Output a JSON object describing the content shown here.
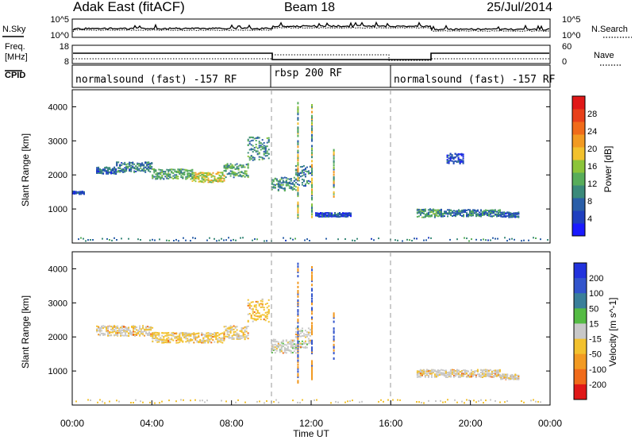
{
  "header": {
    "station": "Adak East (fitACF)",
    "beam": "Beam 18",
    "date": "25/Jul/2014"
  },
  "noise_panel": {
    "left_label": "N.Sky",
    "left_ticks": [
      "10^5",
      "10^0"
    ],
    "right_ticks": [
      "10^5",
      "10^0"
    ],
    "right_label": "N.Search"
  },
  "freq_panel": {
    "left_label": "Freq.",
    "left_unit": "[MHz]",
    "left_ticks": [
      "18",
      "8"
    ],
    "right_ticks": [
      "60",
      "0"
    ],
    "right_label": "Nave"
  },
  "cpid": {
    "label": "CPID",
    "segments": [
      {
        "text": "normalsound (fast) -157 RF",
        "start": 0,
        "end": 10
      },
      {
        "text": "rbsp 200 RF",
        "start": 10,
        "end": 16
      },
      {
        "text": "normalsound (fast) -157 RF",
        "start": 16,
        "end": 24
      }
    ]
  },
  "colors": {
    "power": [
      "#1a1aff",
      "#1f3fbf",
      "#2a5ea8",
      "#3b8a7a",
      "#58ad5a",
      "#8cc43a",
      "#f2c12e",
      "#f29a22",
      "#f06b1a",
      "#e8401a",
      "#e01818"
    ],
    "velocity": [
      "#2233dd",
      "#3355cc",
      "#3a7f9a",
      "#55bb44",
      "#c8c8c8",
      "#f2c12e",
      "#f29a22",
      "#f06b1a",
      "#e01818"
    ]
  },
  "chart_data": [
    {
      "type": "heatmap",
      "parameter": "power",
      "ylabel": "Slant Range [km]",
      "y_ticks": [
        1000,
        2000,
        3000,
        4000
      ],
      "ylim": [
        0,
        4500
      ],
      "xlim": [
        0,
        24
      ],
      "colorbar": {
        "label": "Power [dB]",
        "ticks": [
          4,
          8,
          12,
          16,
          20,
          24,
          28
        ],
        "range": [
          0,
          32
        ]
      },
      "echo_regions": [
        {
          "t_start": 0.0,
          "t_end": 0.6,
          "r_center": 1500,
          "r_width": 80,
          "value": 4
        },
        {
          "t_start": 1.2,
          "t_end": 2.2,
          "r_center": 2150,
          "r_width": 200,
          "value": 6
        },
        {
          "t_start": 2.2,
          "t_end": 4.0,
          "r_center": 2250,
          "r_width": 300,
          "value": 8
        },
        {
          "t_start": 4.0,
          "t_end": 6.0,
          "r_center": 2050,
          "r_width": 300,
          "value": 12
        },
        {
          "t_start": 6.0,
          "t_end": 7.6,
          "r_center": 1950,
          "r_width": 300,
          "value": 18
        },
        {
          "t_start": 7.6,
          "t_end": 8.8,
          "r_center": 2150,
          "r_width": 400,
          "value": 12
        },
        {
          "t_start": 8.8,
          "t_end": 9.9,
          "r_center": 2800,
          "r_width": 700,
          "value": 10
        },
        {
          "t_start": 10.0,
          "t_end": 11.2,
          "r_center": 1750,
          "r_width": 400,
          "value": 10
        },
        {
          "t_start": 11.2,
          "t_end": 12.0,
          "r_center": 2000,
          "r_width": 600,
          "value": 8
        },
        {
          "t_start": 12.2,
          "t_end": 14.0,
          "r_center": 850,
          "r_width": 120,
          "value": 4
        },
        {
          "t_start": 17.3,
          "t_end": 18.5,
          "r_center": 900,
          "r_width": 250,
          "value": 10
        },
        {
          "t_start": 18.5,
          "t_end": 21.5,
          "r_center": 900,
          "r_width": 200,
          "value": 8
        },
        {
          "t_start": 21.5,
          "t_end": 22.4,
          "r_center": 850,
          "r_width": 150,
          "value": 6
        },
        {
          "t_start": 18.8,
          "t_end": 19.6,
          "r_center": 2500,
          "r_width": 300,
          "value": 4
        }
      ]
    },
    {
      "type": "heatmap",
      "parameter": "velocity",
      "xlabel": "Time UT",
      "x_ticks": [
        "00:00",
        "04:00",
        "08:00",
        "12:00",
        "16:00",
        "20:00",
        "00:00"
      ],
      "ylabel": "Slant Range [km]",
      "y_ticks": [
        1000,
        2000,
        3000,
        4000
      ],
      "ylim": [
        0,
        4500
      ],
      "xlim": [
        0,
        24
      ],
      "colorbar": {
        "label": "Velocity [m s^-1]",
        "ticks": [
          200,
          100,
          50,
          15,
          -15,
          -50,
          -100,
          -200
        ],
        "range": [
          -250,
          250
        ]
      },
      "echo_regions": [
        {
          "t_start": 1.2,
          "t_end": 4.0,
          "r_center": 2200,
          "r_width": 300,
          "value": -10
        },
        {
          "t_start": 4.0,
          "t_end": 7.6,
          "r_center": 2000,
          "r_width": 300,
          "value": -20
        },
        {
          "t_start": 7.6,
          "t_end": 8.8,
          "r_center": 2150,
          "r_width": 400,
          "value": -10
        },
        {
          "t_start": 8.8,
          "t_end": 9.9,
          "r_center": 2800,
          "r_width": 700,
          "value": -30
        },
        {
          "t_start": 10.0,
          "t_end": 11.2,
          "r_center": 1750,
          "r_width": 400,
          "value": 0
        },
        {
          "t_start": 11.2,
          "t_end": 12.0,
          "r_center": 2000,
          "r_width": 600,
          "value": 0
        },
        {
          "t_start": 17.3,
          "t_end": 21.5,
          "r_center": 950,
          "r_width": 220,
          "value": -5
        },
        {
          "t_start": 21.5,
          "t_end": 22.4,
          "r_center": 850,
          "r_width": 150,
          "value": -5
        }
      ]
    }
  ]
}
